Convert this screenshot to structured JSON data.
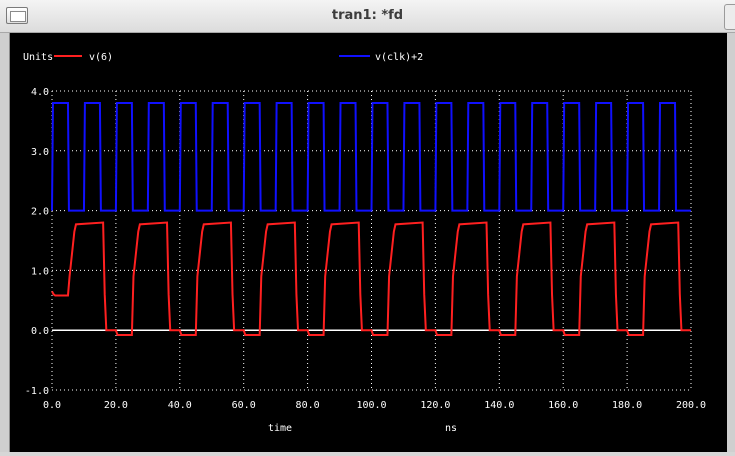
{
  "window": {
    "title": "tran1: *fd"
  },
  "chart_data": {
    "type": "line",
    "ylabel": "Units",
    "xlabel": "time",
    "xunit": "ns",
    "xlim": [
      0,
      200
    ],
    "ylim": [
      -1,
      4
    ],
    "xticks": [
      "0.0",
      "20.0",
      "40.0",
      "60.0",
      "80.0",
      "100.0",
      "120.0",
      "140.0",
      "160.0",
      "180.0",
      "200.0"
    ],
    "yticks": [
      "4.0",
      "3.0",
      "2.0",
      "1.0",
      "0.0",
      "-1.0"
    ],
    "grid": true,
    "legend_position": "top",
    "series": [
      {
        "name": "v(6)",
        "color": "#ff2020",
        "x": [
          0,
          0.5,
          1,
          5,
          5.5,
          7,
          7.5,
          16,
          16.5,
          17,
          20,
          20.5,
          25,
          25.5,
          27,
          27.5,
          36,
          36.5,
          37,
          40,
          40.5,
          45,
          45.5,
          47,
          47.5,
          56,
          56.5,
          57,
          60,
          60.5,
          65,
          65.5,
          67,
          67.5,
          76,
          76.5,
          77,
          80,
          80.5,
          85,
          85.5,
          87,
          87.5,
          96,
          96.5,
          97,
          100,
          100.5,
          105,
          105.5,
          107,
          107.5,
          116,
          116.5,
          117,
          120,
          120.5,
          125,
          125.5,
          127,
          127.5,
          136,
          136.5,
          137,
          140,
          140.5,
          145,
          145.5,
          147,
          147.5,
          156,
          156.5,
          157,
          160,
          160.5,
          165,
          165.5,
          167,
          167.5,
          176,
          176.5,
          177,
          180,
          180.5,
          185,
          185.5,
          187,
          187.5,
          196,
          196.5,
          197,
          200
        ],
        "y": [
          0.65,
          0.6,
          0.58,
          0.58,
          0.9,
          1.65,
          1.77,
          1.8,
          0.6,
          0.0,
          0.0,
          -0.08,
          -0.08,
          0.9,
          1.65,
          1.77,
          1.8,
          0.6,
          0.0,
          0.0,
          -0.08,
          -0.08,
          0.9,
          1.65,
          1.77,
          1.8,
          0.6,
          0.0,
          0.0,
          -0.08,
          -0.08,
          0.9,
          1.65,
          1.77,
          1.8,
          0.6,
          0.0,
          0.0,
          -0.08,
          -0.08,
          0.9,
          1.65,
          1.77,
          1.8,
          0.6,
          0.0,
          0.0,
          -0.08,
          -0.08,
          0.9,
          1.65,
          1.77,
          1.8,
          0.6,
          0.0,
          0.0,
          -0.08,
          -0.08,
          0.9,
          1.65,
          1.77,
          1.8,
          0.6,
          0.0,
          0.0,
          -0.08,
          -0.08,
          0.9,
          1.65,
          1.77,
          1.8,
          0.6,
          0.0,
          0.0,
          -0.08,
          -0.08,
          0.9,
          1.65,
          1.77,
          1.8,
          0.6,
          0.0,
          0.0,
          -0.08,
          -0.08,
          0.9,
          1.65,
          1.77,
          1.8,
          0.6,
          0.0,
          0.0
        ]
      },
      {
        "name": "v(clk)+2",
        "color": "#1010ff",
        "low": 2.0,
        "high": 3.8,
        "period_ns": 10,
        "high_time_ns": 5,
        "phase_ns": 0
      }
    ]
  }
}
